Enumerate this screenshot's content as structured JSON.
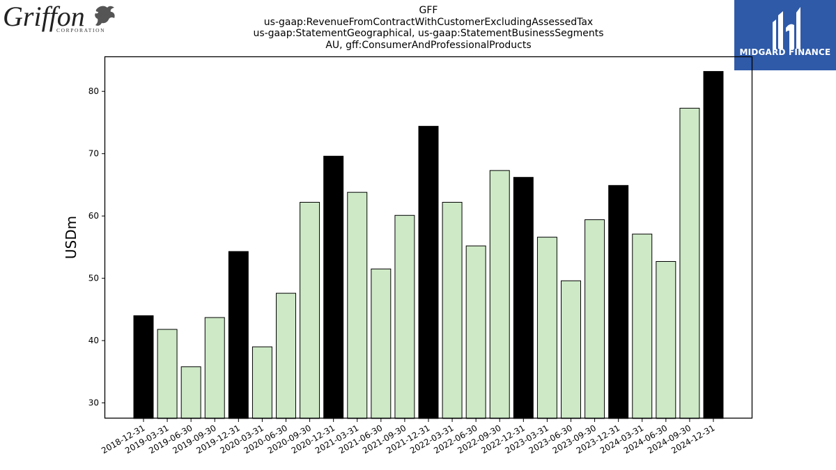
{
  "header": {
    "title_lines": [
      "GFF",
      "us-gaap:RevenueFromContractWithCustomerExcludingAssessedTax",
      "us-gaap:StatementGeographical, us-gaap:StatementBusinessSegments",
      "AU, gff:ConsumerAndProfessionalProducts"
    ]
  },
  "logos": {
    "left": {
      "text": "Griffon",
      "subtext": "CORPORATION",
      "icon": "griffin-icon"
    },
    "right": {
      "text": "MIDGARD FINANCE",
      "icon": "midgard-logo-icon",
      "color": "#2f5aa8"
    }
  },
  "colors": {
    "annual": "#000000",
    "quarterly": "#cde9c6",
    "edge": "#000000"
  },
  "chart_data": {
    "type": "bar",
    "ylabel": "USDm",
    "xlabel": "",
    "ylim": [
      27.5,
      85.5
    ],
    "yticks": [
      30,
      40,
      50,
      60,
      70,
      80
    ],
    "grid": false,
    "categories": [
      "2018-12-31",
      "2019-03-31",
      "2019-06-30",
      "2019-09-30",
      "2019-12-31",
      "2020-03-31",
      "2020-06-30",
      "2020-09-30",
      "2020-12-31",
      "2021-03-31",
      "2021-06-30",
      "2021-09-30",
      "2021-12-31",
      "2022-03-31",
      "2022-06-30",
      "2022-09-30",
      "2022-12-31",
      "2023-03-31",
      "2023-06-30",
      "2023-09-30",
      "2023-12-31",
      "2024-03-31",
      "2024-06-30",
      "2024-09-30",
      "2024-12-31"
    ],
    "values": [
      44.0,
      41.8,
      35.8,
      43.7,
      54.3,
      39.0,
      47.6,
      62.2,
      69.6,
      63.8,
      51.5,
      60.1,
      74.4,
      62.2,
      55.2,
      67.3,
      66.2,
      56.6,
      49.6,
      59.4,
      64.9,
      57.1,
      52.7,
      77.3,
      83.2
    ],
    "annual_flags": [
      true,
      false,
      false,
      false,
      true,
      false,
      false,
      false,
      true,
      false,
      false,
      false,
      true,
      false,
      false,
      false,
      true,
      false,
      false,
      false,
      true,
      false,
      false,
      false,
      true
    ]
  }
}
